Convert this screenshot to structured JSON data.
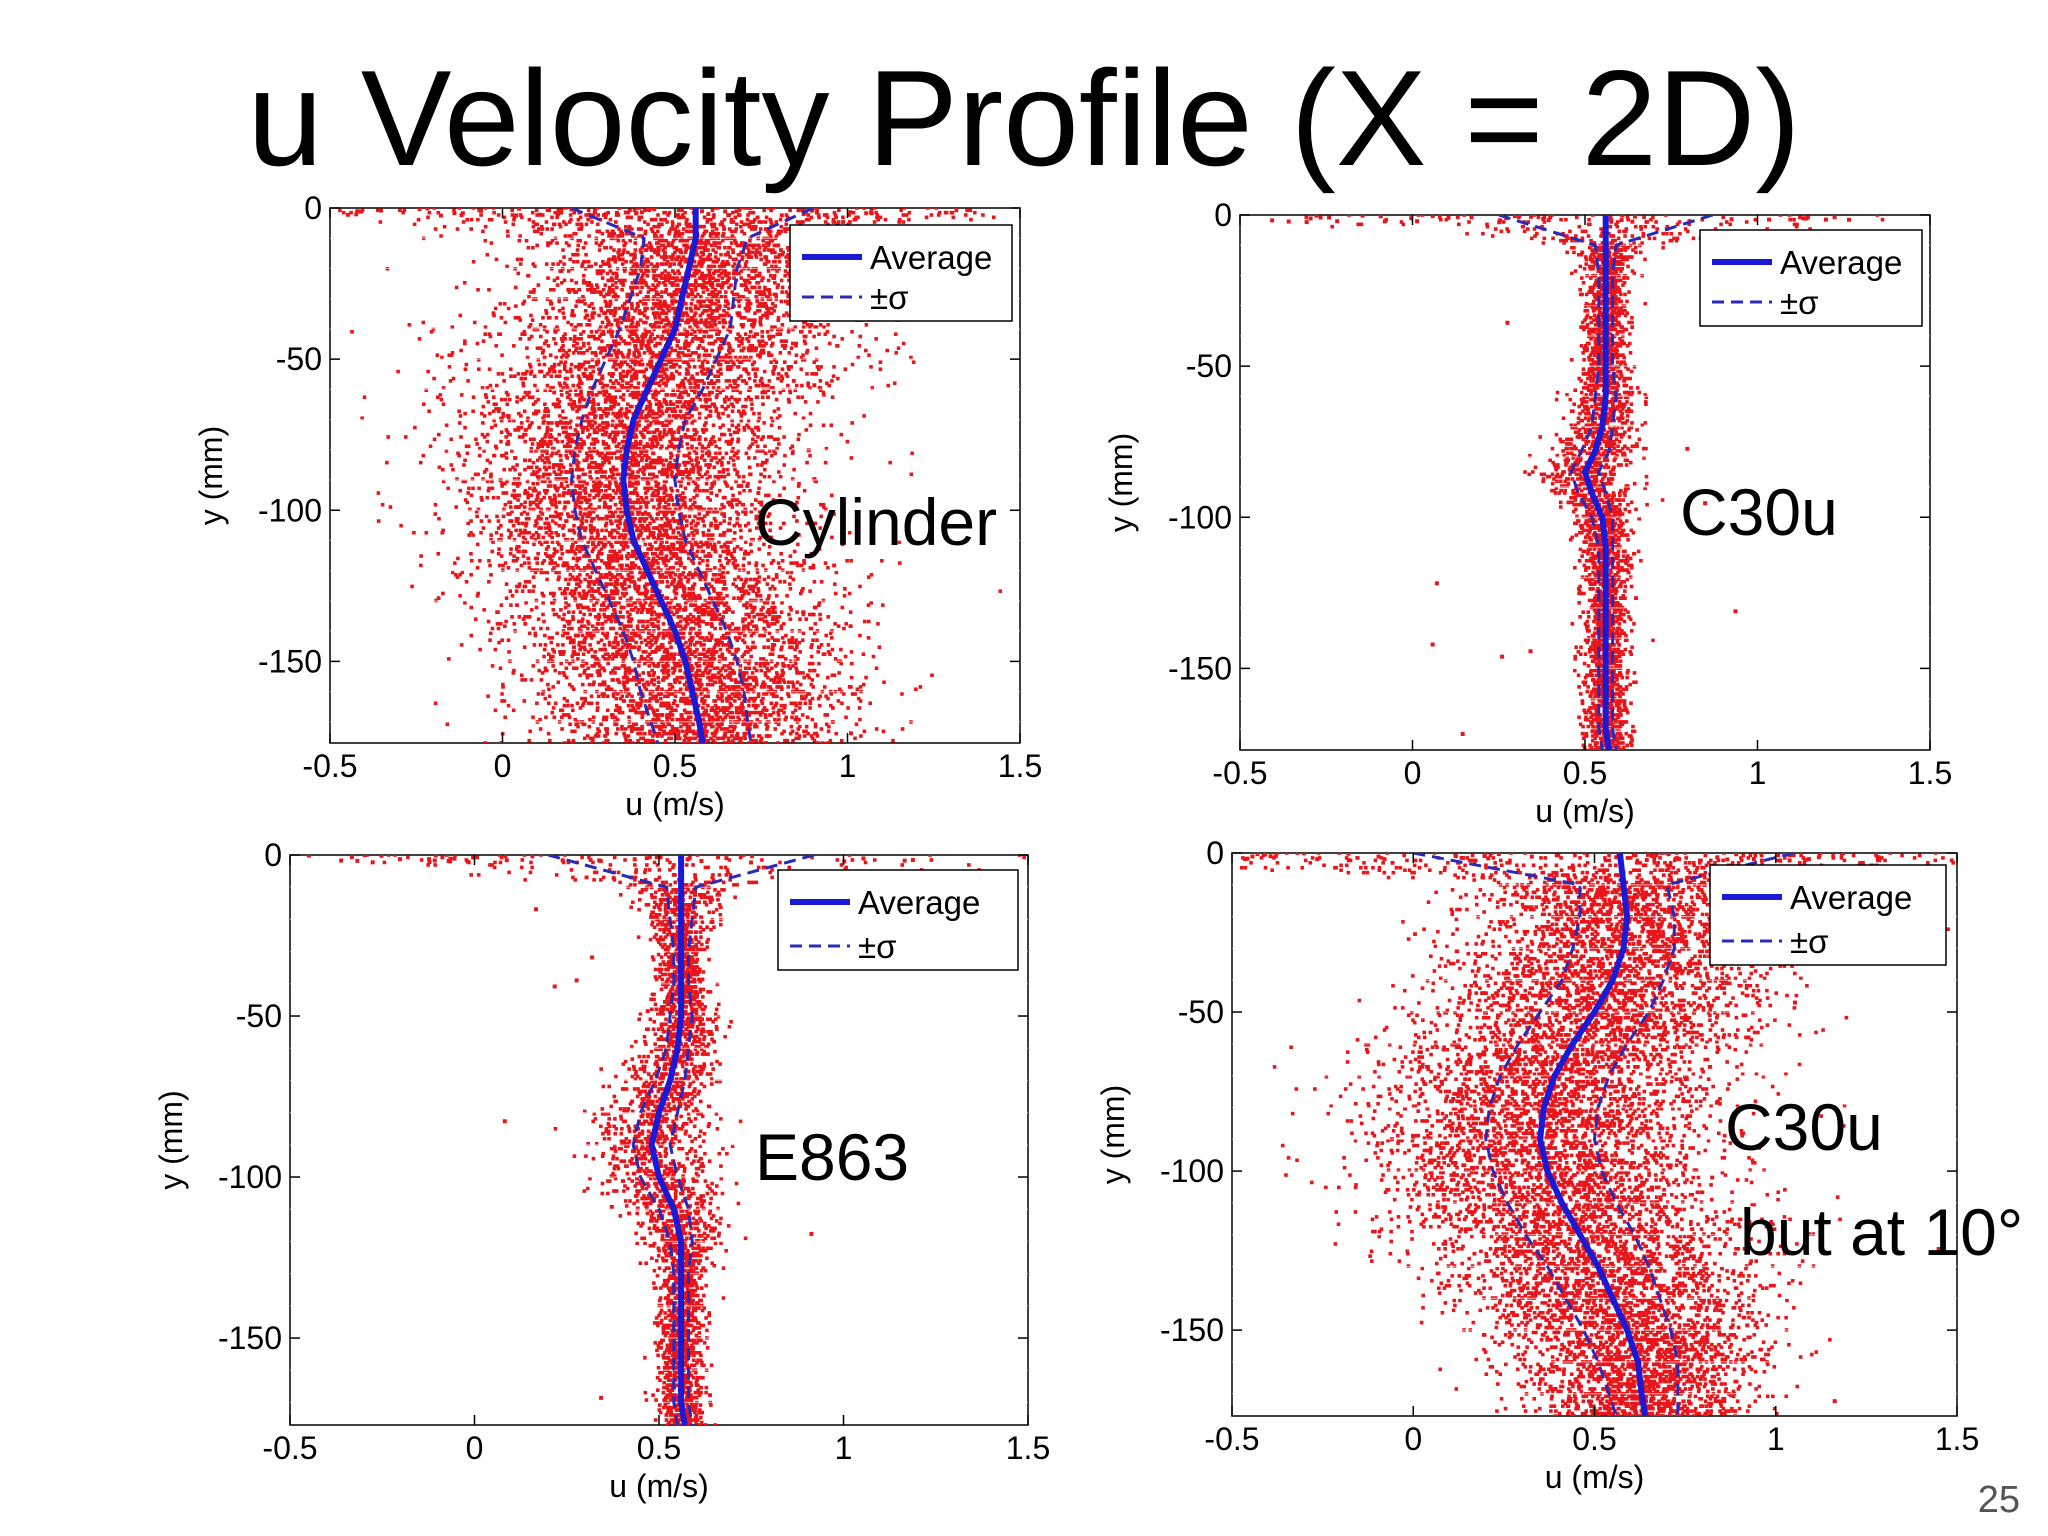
{
  "slide": {
    "title": "u Velocity Profile (X = 2D)",
    "page_number": "25"
  },
  "colors": {
    "scatter": "#e8161b",
    "average": "#1a1ad6",
    "sigma": "#2a2ab8",
    "gridline": "#ffffff"
  },
  "chart_data": [
    {
      "type": "scatter",
      "panel": "top-left",
      "labels": [
        "Cylinder"
      ],
      "xlabel": "u (m/s)",
      "ylabel": "y (mm)",
      "xlim": [
        -0.5,
        1.5
      ],
      "ylim": [
        -177,
        0
      ],
      "xticks": [
        "-0.5",
        "0",
        "0.5",
        "1",
        "1.5"
      ],
      "yticks": [
        "0",
        "-50",
        "-100",
        "-150"
      ],
      "legend": {
        "position": "top-right",
        "entries": [
          "Average",
          "±σ"
        ]
      },
      "series": [
        {
          "name": "Average",
          "y": [
            0,
            -10,
            -20,
            -30,
            -40,
            -50,
            -60,
            -70,
            -80,
            -90,
            -100,
            -110,
            -120,
            -130,
            -140,
            -150,
            -160,
            -170,
            -177
          ],
          "x": [
            0.56,
            0.56,
            0.54,
            0.52,
            0.5,
            0.46,
            0.42,
            0.38,
            0.36,
            0.35,
            0.36,
            0.38,
            0.42,
            0.46,
            0.5,
            0.53,
            0.55,
            0.57,
            0.58
          ]
        },
        {
          "name": "±σ",
          "y": [
            0,
            -10,
            -20,
            -30,
            -40,
            -50,
            -60,
            -70,
            -80,
            -90,
            -100,
            -110,
            -120,
            -130,
            -140,
            -150,
            -160,
            -170,
            -177
          ],
          "x_low": [
            0.2,
            0.41,
            0.4,
            0.37,
            0.34,
            0.3,
            0.26,
            0.23,
            0.21,
            0.2,
            0.21,
            0.23,
            0.27,
            0.31,
            0.35,
            0.38,
            0.4,
            0.43,
            0.45
          ],
          "x_high": [
            0.9,
            0.71,
            0.68,
            0.67,
            0.66,
            0.62,
            0.58,
            0.53,
            0.51,
            0.5,
            0.51,
            0.53,
            0.57,
            0.61,
            0.65,
            0.68,
            0.7,
            0.71,
            0.72
          ]
        }
      ]
    },
    {
      "type": "scatter",
      "panel": "top-right",
      "labels": [
        "C30u"
      ],
      "xlabel": "u (m/s)",
      "ylabel": "y (mm)",
      "xlim": [
        -0.5,
        1.5
      ],
      "ylim": [
        -177,
        0
      ],
      "xticks": [
        "-0.5",
        "0",
        "0.5",
        "1",
        "1.5"
      ],
      "yticks": [
        "0",
        "-50",
        "-100",
        "-150"
      ],
      "legend": {
        "position": "top-right",
        "entries": [
          "Average",
          "±σ"
        ]
      },
      "series": [
        {
          "name": "Average",
          "y": [
            0,
            -10,
            -20,
            -30,
            -40,
            -50,
            -60,
            -70,
            -78,
            -85,
            -92,
            -100,
            -110,
            -120,
            -130,
            -140,
            -150,
            -160,
            -170,
            -177
          ],
          "x": [
            0.56,
            0.56,
            0.56,
            0.56,
            0.56,
            0.56,
            0.56,
            0.55,
            0.53,
            0.5,
            0.52,
            0.55,
            0.56,
            0.56,
            0.56,
            0.56,
            0.56,
            0.56,
            0.56,
            0.57
          ]
        },
        {
          "name": "±σ",
          "y": [
            0,
            -10,
            -20,
            -30,
            -40,
            -50,
            -60,
            -70,
            -78,
            -85,
            -92,
            -100,
            -110,
            -120,
            -130,
            -140,
            -150,
            -160,
            -170,
            -177
          ],
          "x_low": [
            0.25,
            0.53,
            0.54,
            0.54,
            0.54,
            0.54,
            0.53,
            0.52,
            0.49,
            0.46,
            0.48,
            0.52,
            0.54,
            0.54,
            0.54,
            0.54,
            0.54,
            0.54,
            0.54,
            0.55
          ],
          "x_high": [
            0.87,
            0.59,
            0.58,
            0.58,
            0.58,
            0.58,
            0.59,
            0.58,
            0.57,
            0.54,
            0.56,
            0.58,
            0.58,
            0.58,
            0.58,
            0.58,
            0.58,
            0.58,
            0.58,
            0.59
          ]
        }
      ]
    },
    {
      "type": "scatter",
      "panel": "bottom-left",
      "labels": [
        "E863"
      ],
      "xlabel": "u (m/s)",
      "ylabel": "y (mm)",
      "xlim": [
        -0.5,
        1.5
      ],
      "ylim": [
        -177,
        0
      ],
      "xticks": [
        "-0.5",
        "0",
        "0.5",
        "1",
        "1.5"
      ],
      "yticks": [
        "0",
        "-50",
        "-100",
        "-150"
      ],
      "legend": {
        "position": "top-right",
        "entries": [
          "Average",
          "±σ"
        ]
      },
      "series": [
        {
          "name": "Average",
          "y": [
            0,
            -10,
            -20,
            -30,
            -40,
            -50,
            -60,
            -70,
            -80,
            -90,
            -100,
            -110,
            -120,
            -130,
            -140,
            -150,
            -160,
            -170,
            -177
          ],
          "x": [
            0.56,
            0.56,
            0.56,
            0.56,
            0.56,
            0.56,
            0.55,
            0.53,
            0.5,
            0.48,
            0.5,
            0.54,
            0.56,
            0.56,
            0.56,
            0.56,
            0.56,
            0.56,
            0.57
          ]
        },
        {
          "name": "±σ",
          "y": [
            0,
            -10,
            -20,
            -30,
            -40,
            -50,
            -60,
            -70,
            -80,
            -90,
            -100,
            -110,
            -120,
            -130,
            -140,
            -150,
            -160,
            -170,
            -177
          ],
          "x_low": [
            0.2,
            0.52,
            0.53,
            0.54,
            0.54,
            0.53,
            0.52,
            0.49,
            0.45,
            0.43,
            0.45,
            0.5,
            0.53,
            0.54,
            0.54,
            0.54,
            0.54,
            0.54,
            0.55
          ],
          "x_high": [
            0.92,
            0.6,
            0.59,
            0.58,
            0.58,
            0.59,
            0.58,
            0.57,
            0.55,
            0.53,
            0.55,
            0.58,
            0.59,
            0.58,
            0.58,
            0.58,
            0.58,
            0.58,
            0.59
          ]
        }
      ]
    },
    {
      "type": "scatter",
      "panel": "bottom-right",
      "labels": [
        "C30u",
        "but at 10°"
      ],
      "xlabel": "u (m/s)",
      "ylabel": "y (mm)",
      "xlim": [
        -0.5,
        1.5
      ],
      "ylim": [
        -177,
        0
      ],
      "xticks": [
        "-0.5",
        "0",
        "0.5",
        "1",
        "1.5"
      ],
      "yticks": [
        "0",
        "-50",
        "-100",
        "-150"
      ],
      "legend": {
        "position": "top-right",
        "entries": [
          "Average",
          "±σ"
        ]
      },
      "series": [
        {
          "name": "Average",
          "y": [
            0,
            -10,
            -20,
            -30,
            -40,
            -50,
            -60,
            -70,
            -80,
            -90,
            -100,
            -110,
            -120,
            -130,
            -140,
            -150,
            -160,
            -170,
            -177
          ],
          "x": [
            0.57,
            0.58,
            0.59,
            0.58,
            0.55,
            0.5,
            0.44,
            0.39,
            0.36,
            0.35,
            0.37,
            0.41,
            0.46,
            0.51,
            0.55,
            0.59,
            0.62,
            0.63,
            0.64
          ]
        },
        {
          "name": "±σ",
          "y": [
            0,
            -10,
            -20,
            -30,
            -40,
            -50,
            -60,
            -70,
            -80,
            -90,
            -100,
            -110,
            -120,
            -130,
            -140,
            -150,
            -160,
            -170,
            -177
          ],
          "x_low": [
            0.0,
            0.46,
            0.46,
            0.44,
            0.41,
            0.35,
            0.29,
            0.24,
            0.21,
            0.2,
            0.22,
            0.26,
            0.31,
            0.37,
            0.42,
            0.47,
            0.51,
            0.54,
            0.56
          ],
          "x_high": [
            1.05,
            0.7,
            0.72,
            0.72,
            0.69,
            0.65,
            0.59,
            0.54,
            0.51,
            0.5,
            0.52,
            0.56,
            0.61,
            0.65,
            0.68,
            0.71,
            0.73,
            0.73,
            0.73
          ]
        }
      ]
    }
  ]
}
